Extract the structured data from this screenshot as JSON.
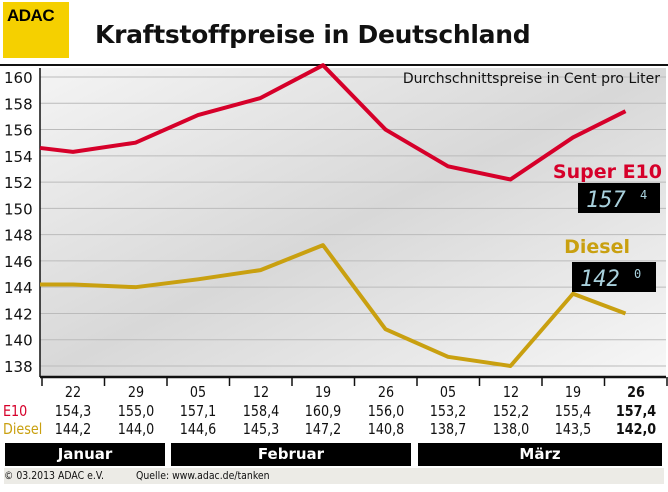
{
  "logo": "ADAC",
  "title": "Kraftstoffpreise in Deutschland",
  "colors": {
    "e10": "#d6002a",
    "diesel": "#c9a010",
    "logo": "#f5d000"
  },
  "chart_data": {
    "type": "line",
    "title": "Kraftstoffpreise in Deutschland",
    "subtitle": "Durchschnittspreise in Cent pro Liter",
    "ylim": [
      138,
      160
    ],
    "yticks": [
      138,
      140,
      142,
      144,
      146,
      148,
      150,
      152,
      154,
      156,
      158,
      160
    ],
    "categories": [
      "22",
      "29",
      "05",
      "12",
      "19",
      "26",
      "05",
      "12",
      "19",
      "26"
    ],
    "months": [
      "Januar",
      "Februar",
      "März"
    ],
    "series": [
      {
        "name": "E10",
        "legend": "Super E10",
        "display": "157",
        "display_sup": "4",
        "values": [
          154.3,
          155.0,
          157.1,
          158.4,
          160.9,
          156.0,
          153.2,
          152.2,
          155.4,
          157.4
        ],
        "labels": [
          "154,3",
          "155,0",
          "157,1",
          "158,4",
          "160,9",
          "156,0",
          "153,2",
          "152,2",
          "155,4",
          "157,4"
        ]
      },
      {
        "name": "Diesel",
        "legend": "Diesel",
        "display": "142",
        "display_sup": "0",
        "values": [
          144.2,
          144.0,
          144.6,
          145.3,
          147.2,
          140.8,
          138.7,
          138.0,
          143.5,
          142.0
        ],
        "labels": [
          "144,2",
          "144,0",
          "144,6",
          "145,3",
          "147,2",
          "140,8",
          "138,7",
          "138,0",
          "143,5",
          "142,0"
        ]
      }
    ]
  },
  "footer": {
    "copyright": "© 03.2013  ADAC e.V.",
    "source": "Quelle: www.adac.de/tanken"
  }
}
